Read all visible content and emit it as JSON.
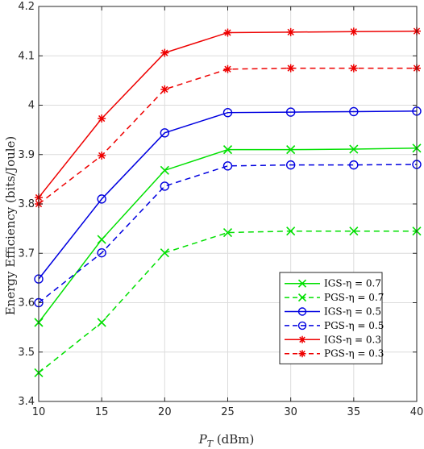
{
  "chart_data": {
    "type": "line",
    "title": "",
    "xlabel": "P_T (dBm)",
    "xlabel_main": "P",
    "xlabel_sub": "T",
    "xlabel_unit": " (dBm)",
    "ylabel": "Energy Efficiency (bits/Joule)",
    "x": [
      10,
      15,
      20,
      25,
      30,
      35,
      40
    ],
    "xlim": [
      10,
      40
    ],
    "ylim": [
      3.4,
      4.2
    ],
    "xticks": [
      "10",
      "15",
      "20",
      "25",
      "30",
      "35",
      "40"
    ],
    "yticks": [
      "3.4",
      "3.5",
      "3.6",
      "3.7",
      "3.8",
      "3.9",
      "4",
      "4.1",
      "4.2"
    ],
    "grid": true,
    "legend_position": "bottom-right",
    "series": [
      {
        "name": "IGS-η = 0.7",
        "color": "#00e000",
        "dash": "solid",
        "marker": "x",
        "values": [
          3.56,
          3.728,
          3.868,
          3.91,
          3.91,
          3.911,
          3.913
        ]
      },
      {
        "name": "PGS-η = 0.7",
        "color": "#00e000",
        "dash": "dashed",
        "marker": "x",
        "values": [
          3.458,
          3.56,
          3.701,
          3.742,
          3.745,
          3.745,
          3.745
        ]
      },
      {
        "name": "IGS-η = 0.5",
        "color": "#0000e0",
        "dash": "solid",
        "marker": "o",
        "values": [
          3.648,
          3.81,
          3.944,
          3.985,
          3.986,
          3.987,
          3.988
        ]
      },
      {
        "name": "PGS-η = 0.5",
        "color": "#0000e0",
        "dash": "dashed",
        "marker": "o",
        "values": [
          3.6,
          3.701,
          3.836,
          3.877,
          3.879,
          3.879,
          3.88
        ]
      },
      {
        "name": "IGS-η = 0.3",
        "color": "#ee0000",
        "dash": "solid",
        "marker": "*",
        "values": [
          3.813,
          3.973,
          4.106,
          4.147,
          4.148,
          4.149,
          4.15
        ]
      },
      {
        "name": "PGS-η = 0.3",
        "color": "#ee0000",
        "dash": "dashed",
        "marker": "*",
        "values": [
          3.8,
          3.898,
          4.032,
          4.073,
          4.075,
          4.075,
          4.075
        ]
      }
    ]
  }
}
